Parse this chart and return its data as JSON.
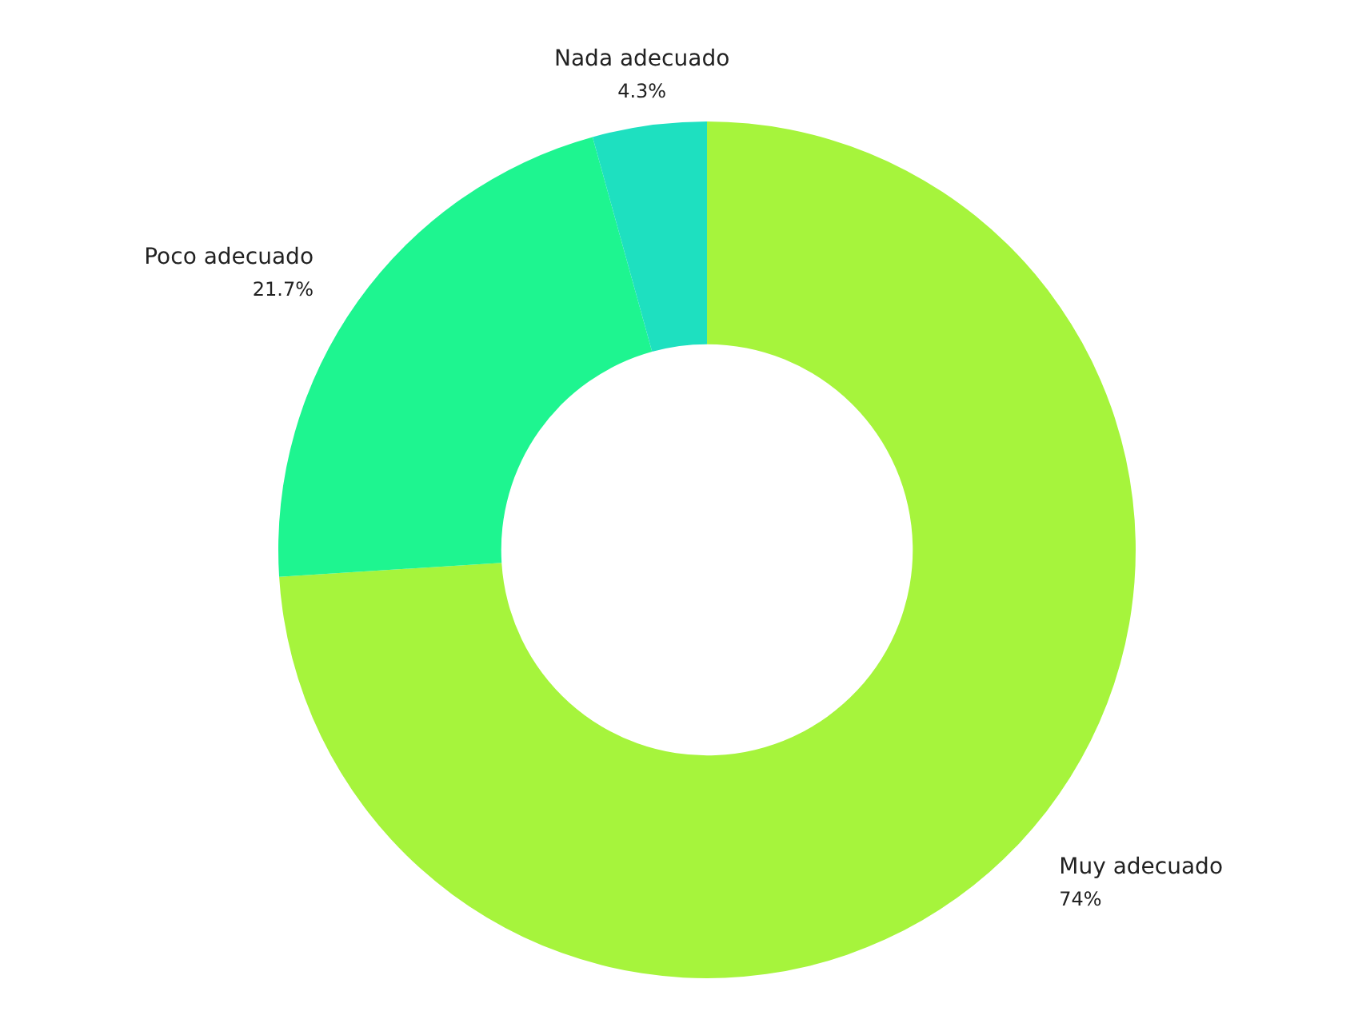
{
  "chart_data": {
    "type": "donut",
    "categories": [
      "Muy adecuado",
      "Poco adecuado",
      "Nada adecuado"
    ],
    "values": [
      74,
      21.7,
      4.3
    ],
    "colors": [
      "#a6f43c",
      "#1ef590",
      "#1ee0c0"
    ],
    "value_labels": [
      "74%",
      "21.7%",
      "4.3%"
    ]
  }
}
